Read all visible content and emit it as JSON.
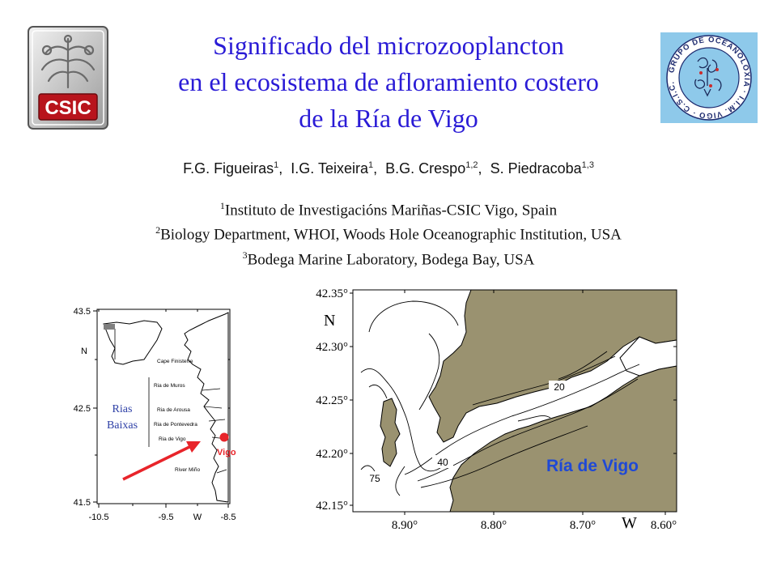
{
  "title": {
    "line1": "Significado del microzooplancton",
    "line2": "en el ecosistema de afloramiento costero",
    "line3": "de la Ría de Vigo"
  },
  "logos": {
    "csic_text": "CSIC",
    "ocean_text": "GRUPO DE OCEANOLOXIA · I.I.M. VIGO · C.S.I.C."
  },
  "authors": [
    {
      "name": "F.G. Figueiras",
      "sup": "1",
      "sep": ","
    },
    {
      "name": "I.G. Teixeira",
      "sup": "1",
      "sep": ","
    },
    {
      "name": "B.G. Crespo",
      "sup": "1,2",
      "sep": ","
    },
    {
      "name": "S. Piedracoba",
      "sup": "1,3",
      "sep": ""
    }
  ],
  "affiliations": [
    {
      "sup": "1",
      "text": "Instituto de Investigacións Mariñas-CSIC Vigo, Spain"
    },
    {
      "sup": "2",
      "text": "Biology Department, WHOI, Woods Hole Oceanographic Institution, USA"
    },
    {
      "sup": "3",
      "text": "Bodega Marine Laboratory, Bodega Bay, USA"
    }
  ],
  "left_map": {
    "y_ticks": [
      "43.5",
      "42.5",
      "41.5"
    ],
    "x_ticks": [
      "-10.5",
      "-9.5",
      "-8.5"
    ],
    "n_label": "N",
    "w_label": "W",
    "places": [
      "Cape Finisterre",
      "Ria de Muros",
      "Ria de Arousa",
      "Ria de Pontevedra",
      "Ria de Vigo",
      "River Miño"
    ],
    "rias_label": [
      "Rias",
      "Baixas"
    ],
    "vigo_label": "Vigo",
    "colors": {
      "arrow": "#e8242a",
      "vigo": "#e8242a",
      "rias": "#2d3fa6"
    }
  },
  "right_map": {
    "y_ticks": [
      "42.35°",
      "42.30°",
      "42.25°",
      "42.20°",
      "42.15°"
    ],
    "x_ticks": [
      "8.90°",
      "8.80°",
      "8.70°",
      "8.60°"
    ],
    "n_label": "N",
    "w_label": "W",
    "contours": [
      "20",
      "40",
      "75"
    ],
    "label": "Ría de Vigo",
    "colors": {
      "land": "#9a9270",
      "label": "#1f49d6"
    }
  }
}
